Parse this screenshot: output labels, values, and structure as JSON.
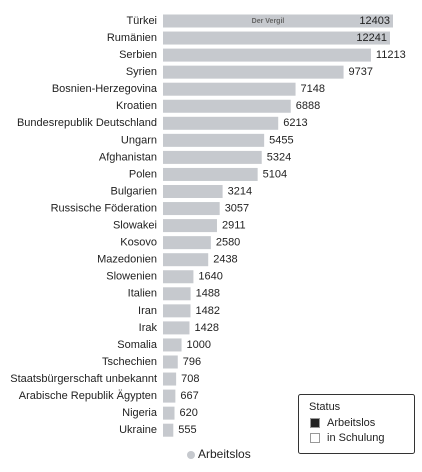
{
  "chart_data": {
    "type": "bar",
    "orientation": "horizontal",
    "categories": [
      "Türkei",
      "Rumänien",
      "Serbien",
      "Syrien",
      "Bosnien-Herzegovina",
      "Kroatien",
      "Bundesrepublik Deutschland",
      "Ungarn",
      "Afghanistan",
      "Polen",
      "Bulgarien",
      "Russische Föderation",
      "Slowakei",
      "Kosovo",
      "Mazedonien",
      "Slowenien",
      "Italien",
      "Iran",
      "Irak",
      "Somalia",
      "Tschechien",
      "Staatsbürgerschaft unbekannt",
      "Arabische Republik Ägypten",
      "Nigeria",
      "Ukraine"
    ],
    "series": [
      {
        "name": "Arbeitslos",
        "color": "#c6c9ce",
        "values": [
          12403,
          12241,
          11213,
          9737,
          7148,
          6888,
          6213,
          5455,
          5324,
          5104,
          3214,
          3057,
          2911,
          2580,
          2438,
          1640,
          1488,
          1482,
          1428,
          1000,
          796,
          708,
          667,
          620,
          555
        ]
      }
    ],
    "watermark": "Der Vergil",
    "legend": {
      "title": "Status",
      "items": [
        {
          "label": "Arbeitslos",
          "color": "#222222"
        },
        {
          "label": "in Schulung",
          "color": "#ffffff"
        }
      ]
    }
  }
}
